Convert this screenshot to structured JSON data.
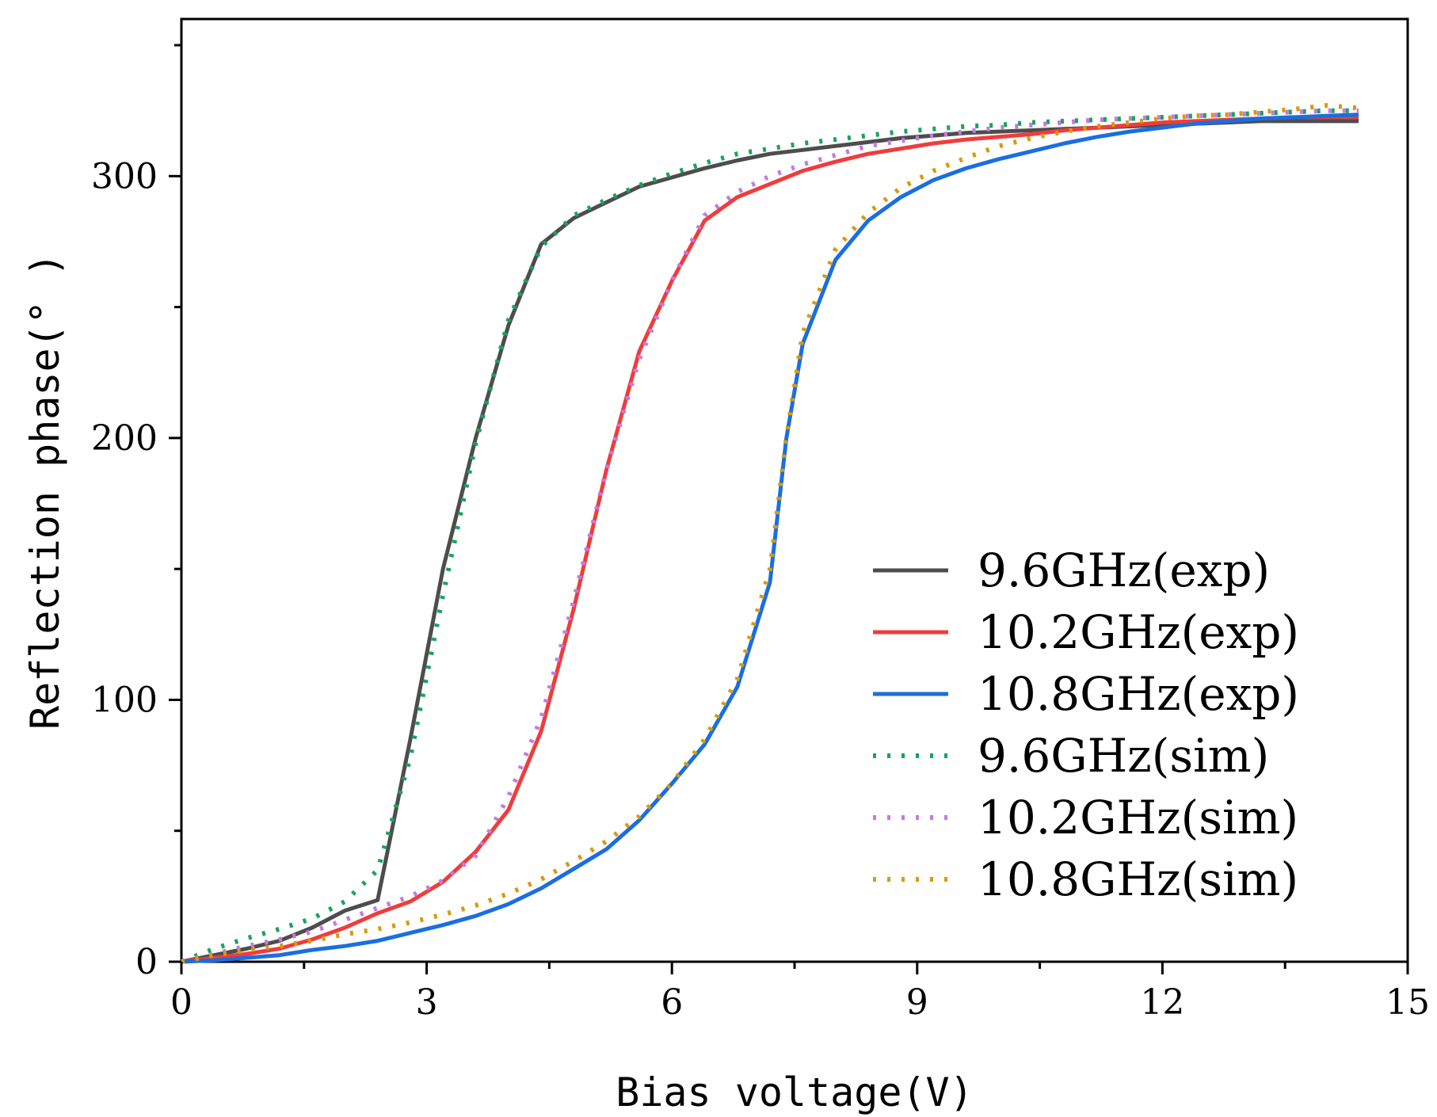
{
  "chart_data": {
    "type": "line",
    "title": "",
    "xlabel": "Bias voltage(V)",
    "ylabel": "Reflection phase(° )",
    "xlim": [
      0,
      15
    ],
    "ylim": [
      0,
      360
    ],
    "xticks": [
      0,
      3,
      6,
      9,
      12,
      15
    ],
    "xtick_labels": [
      "0",
      "3",
      "6",
      "9",
      "12",
      "15"
    ],
    "yticks": [
      0,
      100,
      200,
      300
    ],
    "ytick_labels": [
      "0",
      "100",
      "200",
      "300"
    ],
    "legend_position": "center-right",
    "series": [
      {
        "name": "9.6GHz(exp)",
        "color": "#4d4d4d",
        "style": "solid",
        "x": [
          0,
          0.4,
          0.8,
          1.2,
          1.6,
          2.0,
          2.4,
          2.8,
          3.2,
          3.6,
          4.0,
          4.4,
          4.8,
          5.2,
          5.6,
          6.0,
          6.4,
          6.8,
          7.2,
          7.6,
          8.0,
          8.4,
          8.8,
          9.2,
          9.6,
          10.0,
          10.4,
          10.8,
          11.2,
          11.6,
          12.0,
          12.4,
          12.8,
          13.2,
          13.6,
          14.0,
          14.4
        ],
        "y": [
          0,
          2.5,
          5,
          8,
          13,
          19.5,
          23.5,
          85,
          150,
          200,
          243,
          274,
          284,
          290,
          296,
          299.5,
          303,
          306,
          308.5,
          310,
          311.5,
          313,
          314.5,
          315.5,
          316.5,
          317,
          317.5,
          318,
          318.5,
          319,
          319.5,
          320,
          320.5,
          321,
          321,
          321,
          321
        ]
      },
      {
        "name": "10.2GHz(exp)",
        "color": "#f03c3c",
        "style": "solid",
        "x": [
          0,
          0.4,
          0.8,
          1.2,
          1.6,
          2.0,
          2.4,
          2.8,
          3.2,
          3.6,
          4.0,
          4.4,
          4.8,
          5.2,
          5.6,
          6.0,
          6.4,
          6.8,
          7.2,
          7.6,
          8.0,
          8.4,
          8.8,
          9.2,
          9.6,
          10.0,
          10.4,
          10.8,
          11.2,
          11.6,
          12.0,
          12.4,
          12.8,
          13.2,
          13.6,
          14.0,
          14.4
        ],
        "y": [
          0,
          1.5,
          3,
          5,
          8.5,
          13,
          18.5,
          23,
          30.5,
          42,
          58,
          88,
          135,
          188,
          233,
          260,
          283,
          292,
          297,
          302,
          305.5,
          308.5,
          310.5,
          312.5,
          314,
          315,
          316,
          317.5,
          318.5,
          319.5,
          320.5,
          321,
          321.5,
          322,
          322.5,
          322.5,
          322.5
        ]
      },
      {
        "name": "10.8GHz(exp)",
        "color": "#1a6ee0",
        "style": "solid",
        "x": [
          0,
          0.4,
          0.8,
          1.2,
          1.6,
          2.0,
          2.4,
          2.8,
          3.2,
          3.6,
          4.0,
          4.4,
          4.8,
          5.2,
          5.6,
          6.0,
          6.4,
          6.8,
          7.2,
          7.4,
          7.6,
          8.0,
          8.4,
          8.8,
          9.2,
          9.6,
          10.0,
          10.4,
          10.8,
          11.2,
          11.6,
          12.0,
          12.4,
          12.8,
          13.2,
          13.6,
          14.0,
          14.4
        ],
        "y": [
          0,
          0.5,
          1.5,
          2.5,
          4.5,
          6,
          8,
          11,
          14,
          17.5,
          22,
          28,
          35.5,
          43,
          54,
          68,
          83,
          105,
          145,
          200,
          236,
          268,
          283,
          292,
          298.5,
          303,
          306.5,
          309.5,
          312.5,
          315,
          317,
          318.5,
          320,
          321,
          322,
          322.5,
          323,
          323.5
        ]
      },
      {
        "name": "9.6GHz(sim)",
        "color": "#1aa35c",
        "style": "dotted",
        "x": [
          0,
          0.4,
          0.8,
          1.2,
          1.6,
          2.0,
          2.4,
          2.8,
          3.2,
          3.6,
          4.0,
          4.4,
          4.8,
          5.2,
          5.6,
          6.0,
          6.4,
          6.8,
          7.2,
          7.6,
          8.0,
          8.4,
          8.8,
          9.2,
          9.6,
          10.0,
          10.4,
          10.8,
          11.2,
          11.6,
          12.0,
          12.4,
          12.8,
          13.2,
          13.6,
          14.0,
          14.4
        ],
        "y": [
          0,
          5,
          9,
          12.5,
          16.5,
          23,
          35,
          78,
          140,
          198,
          245,
          273,
          285,
          291,
          296.5,
          301,
          305,
          308.5,
          310.5,
          312.5,
          314,
          315.5,
          317,
          318,
          319,
          319.5,
          320.5,
          321,
          321.5,
          322,
          322.5,
          323,
          323.5,
          324,
          324.5,
          325,
          325
        ]
      },
      {
        "name": "10.2GHz(sim)",
        "color": "#c77ae0",
        "style": "dotted",
        "x": [
          0,
          0.4,
          0.8,
          1.2,
          1.6,
          2.0,
          2.4,
          2.8,
          3.2,
          3.6,
          4.0,
          4.4,
          4.8,
          5.2,
          5.6,
          6.0,
          6.4,
          6.8,
          7.2,
          7.6,
          8.0,
          8.4,
          8.8,
          9.2,
          9.6,
          10.0,
          10.4,
          10.8,
          11.2,
          11.6,
          12.0,
          12.4,
          12.8,
          13.2,
          13.6,
          14.0,
          14.4
        ],
        "y": [
          0,
          3,
          6,
          8.5,
          11.5,
          16,
          20.5,
          25,
          31,
          40.5,
          63,
          93,
          138,
          188,
          230,
          260,
          285,
          294,
          300,
          304.5,
          308,
          311.5,
          313.5,
          315.5,
          317,
          318.5,
          319.5,
          320.5,
          321.5,
          322,
          322.5,
          323,
          323.5,
          324,
          324.5,
          325,
          325
        ]
      },
      {
        "name": "10.8GHz(sim)",
        "color": "#d89a10",
        "style": "dotted",
        "x": [
          0,
          0.4,
          0.8,
          1.2,
          1.6,
          2.0,
          2.4,
          2.8,
          3.2,
          3.6,
          4.0,
          4.4,
          4.8,
          5.2,
          5.6,
          6.0,
          6.4,
          6.8,
          7.2,
          7.4,
          7.6,
          8.0,
          8.4,
          8.8,
          9.2,
          9.6,
          10.0,
          10.4,
          10.8,
          11.2,
          11.6,
          12.0,
          12.4,
          12.8,
          13.2,
          13.6,
          14.0,
          14.4
        ],
        "y": [
          0,
          2.5,
          4.5,
          6,
          8,
          10.5,
          12.5,
          15,
          18,
          21.5,
          26,
          31.5,
          38.5,
          46,
          55.5,
          68,
          85,
          108,
          150,
          200,
          240,
          272,
          286,
          295.5,
          302,
          307,
          311.5,
          314.5,
          317,
          319,
          320.5,
          322,
          323,
          323.5,
          324.5,
          325.5,
          327,
          326
        ]
      }
    ]
  }
}
